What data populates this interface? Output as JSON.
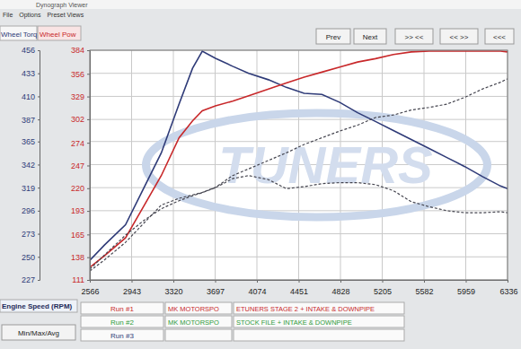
{
  "chart_data": {
    "type": "line",
    "ylabel": "Wheel Torq",
    "y2label": "Wheel Pow",
    "xlabel": "Engine Speed (RPM)",
    "x": [
      2566,
      2700,
      2888,
      3050,
      3211,
      3372,
      3493,
      3581,
      3700,
      3855,
      4000,
      4178,
      4339,
      4500,
      4661,
      4822,
      4983,
      5144,
      5306,
      5467,
      5628,
      5789,
      5950,
      6111,
      6273,
      6336
    ],
    "series": [
      {
        "color": "#2f3b78",
        "line_style": "solid",
        "values": [
          246.6,
          262,
          282,
          318,
          353.6,
          402.6,
          438,
          455,
          448,
          440,
          433,
          426.6,
          419,
          413,
          412,
          404,
          393.7,
          385,
          376,
          367,
          358,
          349,
          340,
          330,
          320.6,
          318
        ]
      },
      {
        "color": "#c8282a",
        "line_style": "solid",
        "axis": "y2",
        "values": [
          126,
          140,
          161,
          198,
          235,
          280,
          300,
          312,
          318,
          323.5,
          330,
          338,
          345,
          352,
          358,
          364,
          370,
          374,
          379,
          382,
          383,
          383,
          383,
          383,
          383,
          382
        ]
      },
      {
        "color": "#45454f",
        "line_style": "dashed",
        "values": [
          237.7,
          252,
          271.6,
          286,
          298,
          306,
          311,
          314,
          319,
          328,
          331,
          327,
          318,
          320,
          323,
          324,
          324,
          322,
          316,
          305,
          300,
          296,
          294,
          294,
          295,
          294
        ]
      },
      {
        "color": "#45454f",
        "line_style": "dashed",
        "axis": "y2",
        "values": [
          121.6,
          135,
          155.6,
          178,
          200,
          208,
          212,
          215,
          221,
          235,
          243,
          253,
          262,
          272,
          280,
          288,
          295,
          304,
          307,
          313,
          316,
          320,
          328,
          338,
          346,
          350
        ]
      }
    ],
    "xlim": [
      2566,
      6336
    ],
    "xticks": [
      2566,
      2943,
      3320,
      3697,
      4074,
      4451,
      4828,
      5205,
      5582,
      5959,
      6336
    ],
    "ylim": [
      227,
      456
    ],
    "yticks": [
      227,
      250,
      273,
      296,
      319,
      342,
      365,
      387,
      410,
      433,
      456
    ],
    "y2lim": [
      111,
      384
    ],
    "y2ticks": [
      111,
      138,
      165,
      193,
      220,
      247,
      274,
      302,
      329,
      356,
      384
    ],
    "grid": true
  },
  "window": {
    "title": "Dynograph Viewer",
    "menu": [
      "File",
      "Options",
      "Preset Views"
    ],
    "buttons": [
      "Prev",
      "Next",
      ">> <<",
      "<< >>",
      "<<<"
    ],
    "watermark": "TUNERS",
    "footer_button": "Min/Max/Avg"
  },
  "runs": [
    {
      "label": "Run #1",
      "color": "#c8282a",
      "owner": "MK MOTORSPO",
      "description": "ETUNERS STAGE 2 + INTAKE & DOWNPIPE"
    },
    {
      "label": "Run #2",
      "color": "#2f9a3a",
      "owner": "MK MOTORSPO",
      "description": "STOCK FILE + INTAKE & DOWNPIPE"
    },
    {
      "label": "Run #3",
      "color": "#2f3b78"
    }
  ]
}
